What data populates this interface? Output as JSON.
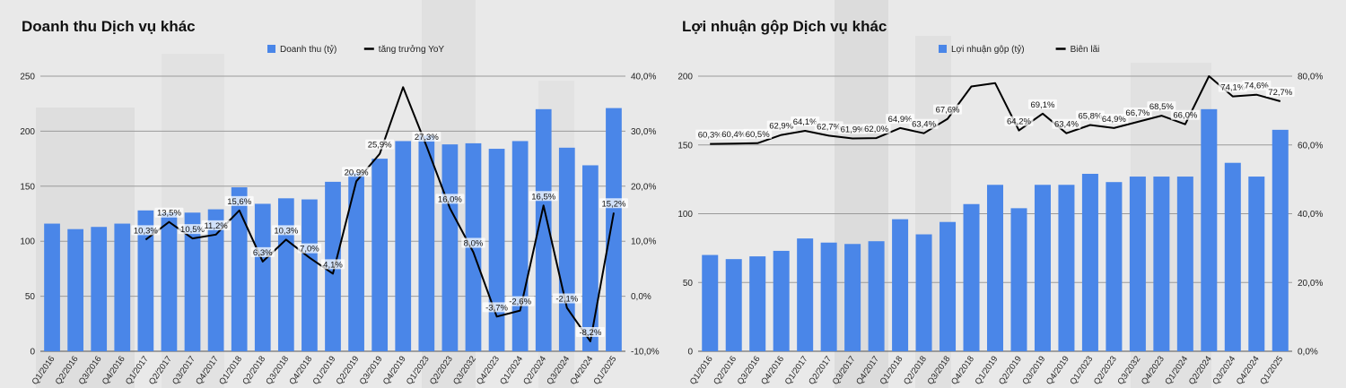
{
  "chart_data": [
    {
      "type": "bar",
      "title": "Doanh thu Dịch vụ khác",
      "categories": [
        "Q1/2016",
        "Q2/2016",
        "Q3/2016",
        "Q4/2016",
        "Q1/2017",
        "Q2/2017",
        "Q3/2017",
        "Q4/2017",
        "Q1/2018",
        "Q2/2018",
        "Q3/2018",
        "Q4/2018",
        "Q1/2019",
        "Q2/2019",
        "Q3/2019",
        "Q4/2019",
        "Q1/2023",
        "Q2/2023",
        "Q3/2032",
        "Q4/2023",
        "Q1/2024",
        "Q2/2024",
        "Q3/2024",
        "Q4/2024",
        "Q1/2025"
      ],
      "series": [
        {
          "name": "Doanh thu (tỷ)",
          "type": "bar",
          "axis": "left",
          "color": "#4a86e8",
          "values": [
            116,
            111,
            113,
            116,
            128,
            126,
            126,
            129,
            149,
            134,
            139,
            138,
            154,
            162,
            175,
            191,
            196,
            188,
            189,
            184,
            191,
            220,
            185,
            169,
            221
          ]
        },
        {
          "name": "tăng trưởng YoY",
          "type": "line",
          "axis": "right",
          "color": "#000000",
          "values": [
            null,
            null,
            null,
            null,
            10.3,
            13.5,
            10.5,
            11.2,
            15.6,
            6.3,
            10.3,
            7.0,
            4.1,
            20.9,
            25.9,
            38.0,
            27.3,
            16.0,
            8.0,
            -3.7,
            -2.6,
            16.5,
            -2.1,
            -8.2,
            15.2
          ],
          "labels": [
            "",
            "",
            "",
            "",
            "10,3%",
            "13,5%",
            "10,5%",
            "11,2%",
            "15,6%",
            "6,3%",
            "10,3%",
            "7,0%",
            "4,1%",
            "20,9%",
            "25,9%",
            "",
            "27,3%",
            "16,0%",
            "8,0%",
            "-3,7%",
            "-2,6%",
            "16,5%",
            "-2,1%",
            "-8,2%",
            "15,2%"
          ]
        }
      ],
      "ylim": [
        0,
        250
      ],
      "yticks": [
        "0",
        "50",
        "100",
        "150",
        "200",
        "250"
      ],
      "y2lim": [
        -10,
        40
      ],
      "y2ticks": [
        "-10,0%",
        "0,0%",
        "10,0%",
        "20,0%",
        "30,0%",
        "40,0%"
      ],
      "legend_position": "top-center",
      "grid": true
    },
    {
      "type": "bar",
      "title": "Lợi nhuận gộp Dịch vụ khác",
      "categories": [
        "Q1/2016",
        "Q2/2016",
        "Q3/2016",
        "Q4/2016",
        "Q1/2017",
        "Q2/2017",
        "Q3/2017",
        "Q4/2017",
        "Q1/2018",
        "Q2/2018",
        "Q3/2018",
        "Q4/2018",
        "Q1/2019",
        "Q2/2019",
        "Q3/2019",
        "Q4/2019",
        "Q1/2023",
        "Q2/2023",
        "Q3/2032",
        "Q4/2023",
        "Q1/2024",
        "Q2/2024",
        "Q3/2024",
        "Q4/2024",
        "Q1/2025"
      ],
      "series": [
        {
          "name": "Lợi nhuận gộp (tỷ)",
          "type": "bar",
          "axis": "left",
          "color": "#4a86e8",
          "values": [
            70,
            67,
            69,
            73,
            82,
            79,
            78,
            80,
            96,
            85,
            94,
            107,
            121,
            104,
            121,
            121,
            129,
            123,
            127,
            127,
            127,
            176,
            137,
            127,
            161
          ]
        },
        {
          "name": "Biên lãi",
          "type": "line",
          "axis": "right",
          "color": "#000000",
          "values": [
            60.3,
            60.4,
            60.5,
            62.9,
            64.1,
            62.7,
            61.9,
            62.0,
            64.9,
            63.4,
            67.6,
            77.0,
            78.0,
            64.2,
            69.1,
            63.4,
            65.8,
            64.9,
            66.7,
            68.5,
            66.0,
            80.0,
            74.1,
            74.6,
            72.7
          ],
          "labels": [
            "60,3%",
            "60,4%",
            "60,5%",
            "62,9%",
            "64,1%",
            "62,7%",
            "61,9%",
            "62,0%",
            "64,9%",
            "63,4%",
            "67,6%",
            "",
            "",
            "64,2%",
            "69,1%",
            "63,4%",
            "65,8%",
            "64,9%",
            "66,7%",
            "68,5%",
            "66,0%",
            "",
            "74,1%",
            "74,6%",
            "72,7%"
          ]
        }
      ],
      "ylim": [
        0,
        200
      ],
      "yticks": [
        "0",
        "50",
        "100",
        "150",
        "200"
      ],
      "y2lim": [
        0,
        80
      ],
      "y2ticks": [
        "0,0%",
        "20,0%",
        "40,0%",
        "60,0%",
        "80,0%"
      ],
      "legend_position": "top-center",
      "grid": true
    }
  ],
  "theme": {
    "background": "#e9e9e9",
    "bar_color": "#4a86e8",
    "line_color": "#000000"
  }
}
